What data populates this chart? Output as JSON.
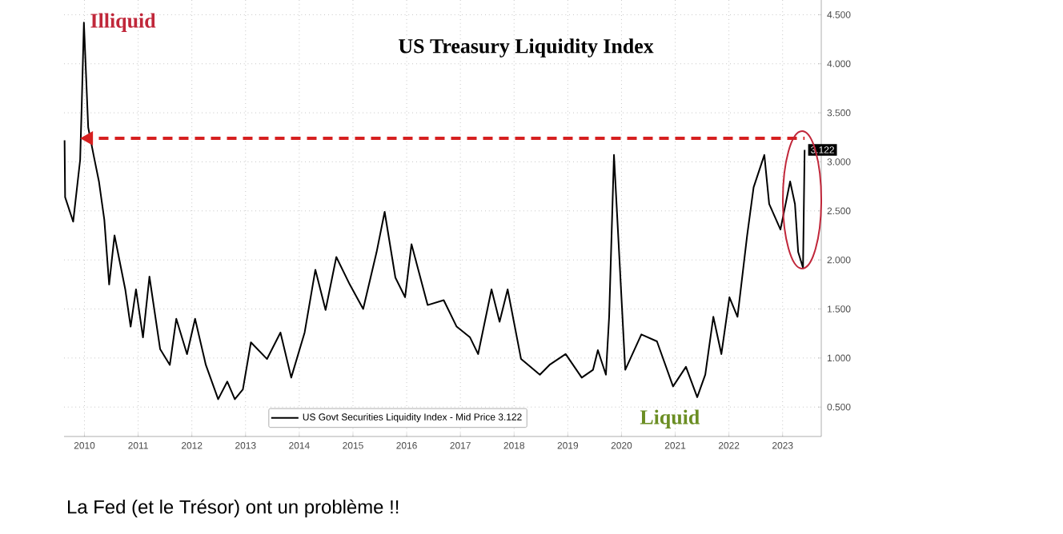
{
  "chart_data": {
    "type": "line",
    "title": "US Treasury Liquidity Index",
    "x": [
      2010.13,
      2010.14,
      2010.29,
      2010.42,
      2010.45,
      2010.49,
      2010.57,
      2010.67,
      2010.77,
      2010.87,
      2010.96,
      2011.06,
      2011.26,
      2011.36,
      2011.46,
      2011.59,
      2011.71,
      2011.91,
      2012.09,
      2012.21,
      2012.41,
      2012.56,
      2012.76,
      2012.99,
      2013.16,
      2013.3,
      2013.45,
      2013.6,
      2013.9,
      2014.15,
      2014.35,
      2014.6,
      2014.8,
      2014.99,
      2015.19,
      2015.44,
      2015.69,
      2015.94,
      2016.09,
      2016.29,
      2016.47,
      2016.59,
      2016.89,
      2017.19,
      2017.43,
      2017.68,
      2017.83,
      2018.08,
      2018.23,
      2018.38,
      2018.63,
      2018.98,
      2019.16,
      2019.46,
      2019.76,
      2019.97,
      2020.06,
      2020.21,
      2020.27,
      2020.36,
      2020.57,
      2020.87,
      2021.16,
      2021.46,
      2021.7,
      2021.91,
      2022.06,
      2022.21,
      2022.36,
      2022.51,
      2022.66,
      2022.84,
      2022.96,
      2023.16,
      2023.25,
      2023.46,
      2023.64,
      2023.73,
      2023.79,
      2023.88,
      2023.91
    ],
    "series": [
      {
        "name": "US Govt Securities Liquidity Index - Mid Price 3.122",
        "color": "#000000",
        "values": [
          3.22,
          2.64,
          2.39,
          3.02,
          3.59,
          4.42,
          3.35,
          3.07,
          2.8,
          2.41,
          1.75,
          2.25,
          1.7,
          1.32,
          1.7,
          1.21,
          1.83,
          1.09,
          0.93,
          1.4,
          1.04,
          1.4,
          0.93,
          0.58,
          0.76,
          0.58,
          0.68,
          1.16,
          0.99,
          1.26,
          0.8,
          1.26,
          1.9,
          1.49,
          2.03,
          1.75,
          1.5,
          2.08,
          2.49,
          1.82,
          1.62,
          2.16,
          1.54,
          1.59,
          1.32,
          1.21,
          1.04,
          1.7,
          1.37,
          1.7,
          0.99,
          0.83,
          0.93,
          1.04,
          0.8,
          0.88,
          1.08,
          0.83,
          1.42,
          3.07,
          0.88,
          1.24,
          1.17,
          0.71,
          0.91,
          0.6,
          0.83,
          1.42,
          1.04,
          1.62,
          1.42,
          2.25,
          2.74,
          3.07,
          2.57,
          2.31,
          2.8,
          2.57,
          2.08,
          1.92,
          3.122
        ],
        "value_labels": [
          null,
          null,
          null,
          null,
          null,
          null,
          null,
          null,
          null,
          null,
          null,
          null,
          null,
          null,
          null,
          null,
          null,
          null,
          null,
          null,
          null,
          null,
          null,
          null,
          null,
          null,
          null,
          null,
          null,
          null,
          null,
          null,
          null,
          null,
          null,
          null,
          null,
          null,
          null,
          null,
          null,
          null,
          null,
          null,
          null,
          null,
          null,
          null,
          null,
          null,
          null,
          null,
          null,
          null,
          null,
          null,
          null,
          null,
          null,
          null,
          null,
          null,
          null,
          null,
          null,
          null,
          null,
          null,
          null,
          null,
          null,
          null,
          null,
          null,
          null,
          null,
          null,
          null,
          null,
          null,
          "3.122"
        ]
      }
    ],
    "xlim": [
      2010.12,
      2024.22
    ],
    "xticks": [
      {
        "value": 2010.5,
        "label": "2010"
      },
      {
        "value": 2011.5,
        "label": "2011"
      },
      {
        "value": 2012.5,
        "label": "2012"
      },
      {
        "value": 2013.5,
        "label": "2013"
      },
      {
        "value": 2014.5,
        "label": "2014"
      },
      {
        "value": 2015.5,
        "label": "2015"
      },
      {
        "value": 2016.5,
        "label": "2016"
      },
      {
        "value": 2017.5,
        "label": "2017"
      },
      {
        "value": 2018.5,
        "label": "2018"
      },
      {
        "value": 2019.5,
        "label": "2019"
      },
      {
        "value": 2020.5,
        "label": "2020"
      },
      {
        "value": 2021.5,
        "label": "2021"
      },
      {
        "value": 2022.5,
        "label": "2022"
      },
      {
        "value": 2023.5,
        "label": "2023"
      }
    ],
    "ylim": [
      0.2,
      4.65
    ],
    "yticks": [
      {
        "value": 0.5,
        "label": "0.500"
      },
      {
        "value": 1.0,
        "label": "1.000"
      },
      {
        "value": 1.5,
        "label": "1.500"
      },
      {
        "value": 2.0,
        "label": "2.000"
      },
      {
        "value": 2.5,
        "label": "2.500"
      },
      {
        "value": 3.0,
        "label": "3.000"
      },
      {
        "value": 3.5,
        "label": "3.500"
      },
      {
        "value": 4.0,
        "label": "4.000"
      },
      {
        "value": 4.5,
        "label": "4.500"
      }
    ],
    "ref_lines": [
      {
        "axis": "y",
        "value": 3.24,
        "color": "#d62020",
        "line_style": "dashed"
      }
    ],
    "annotations": [
      {
        "text": "Illiquid",
        "x": 2010.5,
        "y": 4.42
      },
      "Liquid",
      "La Fed (et le Trésor) ont un problème !!"
    ],
    "grid": true,
    "legend": "bottom",
    "marker": "none",
    "line_style": "solid"
  }
}
